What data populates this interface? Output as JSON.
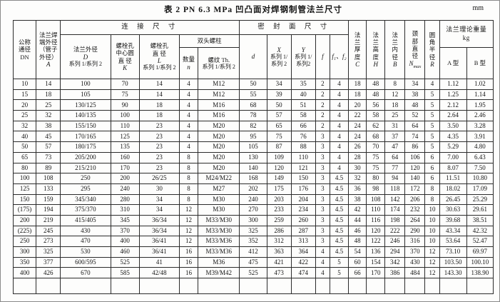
{
  "title": "表 2  PN 6.3 MPa 凹凸面对焊钢制管法兰尺寸",
  "unit": "mm",
  "table": {
    "header": {
      "dn": "公称\n通径\nDN",
      "a_label": "法兰焊\n端外径\n（管子\n外径）",
      "a_sym": "A",
      "conn_group": "连 接 尺 寸",
      "seal_group": "密 封 面 尺 寸",
      "d_label": "法兰外径",
      "d_sym": "D",
      "d_series": "系列 1/系列 2",
      "k_label": "螺栓孔\n中心圆\n直 径",
      "k_sym": "K",
      "l_label": "螺栓孔\n直 径",
      "l_sym": "L",
      "l_series": "系列 1/系列 2",
      "studs_group": "双头螺柱",
      "n_label": "数量",
      "n_sym": "n",
      "th_label": "螺纹 Th.",
      "th_series": "系列 1/系列 2",
      "d2_sym": "d",
      "x_sym": "X",
      "x_series": "系列 1/\n系列 2",
      "y_sym": "Y",
      "y_series": "系列 1/\n系列2",
      "f_sym": "f",
      "f12_sym": "f₁、f₂",
      "c_label": "法\n兰\n厚\n度",
      "c_sym": "C",
      "h_label": "法\n兰\n高\n度",
      "h_sym": "H",
      "b_label": "法\n兰\n内\n径",
      "b_sym": "B",
      "neck_label": "颈\n部\n直\n径",
      "neck_sym": "N",
      "neck_sub": "max",
      "r_label": "圆\n角\n半\n径",
      "r_sym": "R",
      "weight_group": "法兰理论重量\nkg",
      "a_type": "A 型",
      "b_type": "B 型"
    },
    "rows": [
      [
        "10",
        "14",
        "100",
        "70",
        "14",
        "4",
        "M12",
        "50",
        "34",
        "35",
        "2",
        "4",
        "18",
        "48",
        "8",
        "34",
        "4",
        "1.12",
        "1.02"
      ],
      [
        "15",
        "18",
        "105",
        "75",
        "14",
        "4",
        "M12",
        "55",
        "39",
        "40",
        "2",
        "4",
        "18",
        "48",
        "12",
        "38",
        "5",
        "1.25",
        "1.14"
      ],
      [
        "20",
        "25",
        "130/125",
        "90",
        "18",
        "4",
        "M16",
        "68",
        "50",
        "51",
        "2",
        "4",
        "20",
        "56",
        "18",
        "48",
        "5",
        "2.12",
        "1.95"
      ],
      [
        "25",
        "32",
        "140/135",
        "100",
        "18",
        "4",
        "M16",
        "78",
        "57",
        "58",
        "2",
        "4",
        "22",
        "58",
        "25",
        "52",
        "5",
        "2.64",
        "2.46"
      ],
      [
        "32",
        "38",
        "155/150",
        "110",
        "23",
        "4",
        "M20",
        "82",
        "65",
        "66",
        "2",
        "4",
        "24",
        "62",
        "31",
        "64",
        "5",
        "3.50",
        "3.28"
      ],
      [
        "40",
        "45",
        "170/165",
        "125",
        "23",
        "4",
        "M20",
        "95",
        "75",
        "76",
        "3",
        "4",
        "24",
        "68",
        "37",
        "74",
        "5",
        "4.35",
        "3.91"
      ],
      [
        "50",
        "57",
        "180/175",
        "135",
        "23",
        "4",
        "M20",
        "105",
        "87",
        "88",
        "3",
        "4",
        "26",
        "70",
        "47",
        "86",
        "5",
        "5.29",
        "4.80"
      ],
      [
        "65",
        "73",
        "205/200",
        "160",
        "23",
        "8",
        "M20",
        "130",
        "109",
        "110",
        "3",
        "4",
        "28",
        "75",
        "64",
        "106",
        "6",
        "7.00",
        "6.43"
      ],
      [
        "80",
        "89",
        "215/210",
        "170",
        "23",
        "8",
        "M20",
        "140",
        "120",
        "121",
        "3",
        "4",
        "30",
        "75",
        "77",
        "120",
        "6",
        "8.07",
        "7.50"
      ],
      [
        "100",
        "108",
        "250",
        "200",
        "26/25",
        "8",
        "M24/M22",
        "168",
        "149",
        "150",
        "3",
        "4.5",
        "32",
        "80",
        "94",
        "140",
        "6",
        "11.51",
        "10.80"
      ],
      [
        "125",
        "133",
        "295",
        "240",
        "30",
        "8",
        "M27",
        "202",
        "175",
        "176",
        "3",
        "4.5",
        "36",
        "98",
        "118",
        "172",
        "8",
        "18.02",
        "17.09"
      ],
      [
        "150",
        "159",
        "345/340",
        "280",
        "34",
        "8",
        "M30",
        "240",
        "203",
        "204",
        "3",
        "4.5",
        "38",
        "108",
        "142",
        "206",
        "8",
        "26.45",
        "25.29"
      ],
      [
        "(175)",
        "194",
        "375/370",
        "310",
        "34",
        "12",
        "M30",
        "270",
        "233",
        "234",
        "3",
        "4.5",
        "42",
        "110",
        "174",
        "232",
        "10",
        "30.63",
        "29.61"
      ],
      [
        "200",
        "219",
        "415/405",
        "345",
        "36/34",
        "12",
        "M33/M30",
        "300",
        "259",
        "260",
        "3",
        "4.5",
        "44",
        "116",
        "198",
        "264",
        "10",
        "39.68",
        "38.51"
      ],
      [
        "(225)",
        "245",
        "430",
        "370",
        "36/34",
        "12",
        "M33/M30",
        "325",
        "286",
        "287",
        "3",
        "4.5",
        "46",
        "120",
        "222",
        "290",
        "10",
        "43.34",
        "42.32"
      ],
      [
        "250",
        "273",
        "470",
        "400",
        "36/41",
        "12",
        "M33/M36",
        "352",
        "312",
        "313",
        "3",
        "4.5",
        "48",
        "122",
        "246",
        "316",
        "10",
        "53.64",
        "52.47"
      ],
      [
        "300",
        "325",
        "530",
        "460",
        "36/41",
        "16",
        "M33/M36",
        "412",
        "363",
        "364",
        "4",
        "4.5",
        "54",
        "136",
        "294",
        "370",
        "12",
        "73.10",
        "69.97"
      ],
      [
        "350",
        "377",
        "600/595",
        "525",
        "41",
        "16",
        "M36",
        "475",
        "421",
        "422",
        "4",
        "5",
        "60",
        "154",
        "342",
        "430",
        "12",
        "103.50",
        "100.10"
      ],
      [
        "400",
        "426",
        "670",
        "585",
        "42/48",
        "16",
        "M39/M42",
        "525",
        "473",
        "474",
        "4",
        "5",
        "66",
        "170",
        "386",
        "484",
        "12",
        "143.30",
        "138.90"
      ]
    ]
  }
}
